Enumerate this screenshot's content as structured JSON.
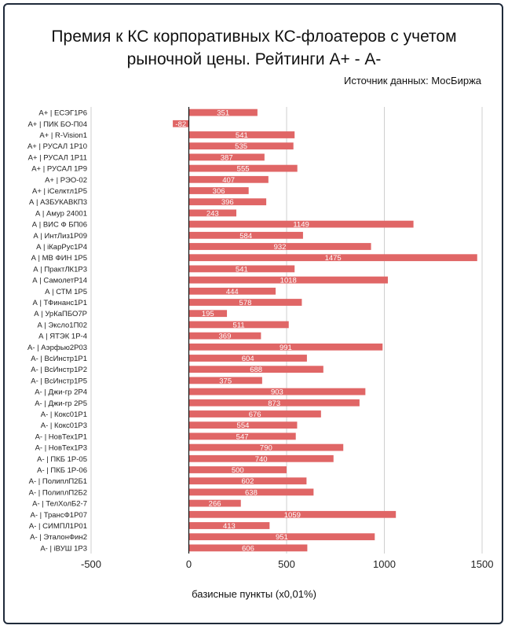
{
  "chart_data": {
    "type": "bar",
    "orientation": "horizontal",
    "title_line1": "Премия к КС корпоративных КС-флоатеров с учетом",
    "title_line2": "рыночной цены. Рейтинги А+ - А-",
    "source": "Источник данных: МосБиржа",
    "xlabel": "базисные пункты (х0,01%)",
    "xlim": [
      -500,
      1500
    ],
    "xticks": [
      "-500",
      "0",
      "500",
      "1000",
      "1500"
    ],
    "xtick_values": [
      -500,
      0,
      500,
      1000,
      1500
    ],
    "grid": true,
    "bar_color": "#e06666",
    "categories": [
      "А+ | ЕСЭГ1Р6",
      "А+ | ПИК БО-П04",
      "А+ | R-Vision1",
      "А+ | РУСАЛ 1Р10",
      "А+ | РУСАЛ 1Р11",
      "А+ | РУСАЛ 1Р9",
      "А+ | РЭО-02",
      "А+ | iСелктл1Р5",
      "А | АЗБУКАВКП3",
      "А | Амур 24001",
      "А | ВИС Ф БП06",
      "А | ИнтЛиз1Р09",
      "А | iКарРус1Р4",
      "А | МВ ФИН 1Р5",
      "А | ПрактЛК1Р3",
      "А | СамолетР14",
      "А | СТМ 1Р5",
      "А | ТФинанс1Р1",
      "А | УрКаПБО7Р",
      "А | Эксло1П02",
      "А | ЯТЭК 1Р-4",
      "А- | Аэрфью2Р03",
      "А- | ВсИнстр1Р1",
      "А- | ВсИнстр1Р2",
      "А- | ВсИнстр1Р5",
      "А- | Джи-гр 2Р4",
      "А- | Джи-гр 2Р5",
      "А- | Кокс01Р1",
      "А- | Кокс01Р3",
      "А- | НовТех1Р1",
      "А- | НовТех1Р3",
      "А- | ПКБ 1Р-05",
      "А- | ПКБ 1Р-06",
      "А- | ПолиплП2Б1",
      "А- | ПолиплП2Б2",
      "А- | ТелХолБ2-7",
      "А- | ТрансФ1Р07",
      "А- | СИМПЛ1Р01",
      "А- | ЭталонФин2",
      "А- | iВУШ 1Р3"
    ],
    "values": [
      351,
      -82,
      541,
      535,
      387,
      555,
      407,
      306,
      396,
      243,
      1149,
      584,
      932,
      1475,
      541,
      1018,
      444,
      578,
      195,
      511,
      369,
      991,
      604,
      688,
      375,
      903,
      873,
      676,
      554,
      547,
      790,
      740,
      500,
      602,
      638,
      266,
      1059,
      413,
      951,
      606
    ]
  }
}
